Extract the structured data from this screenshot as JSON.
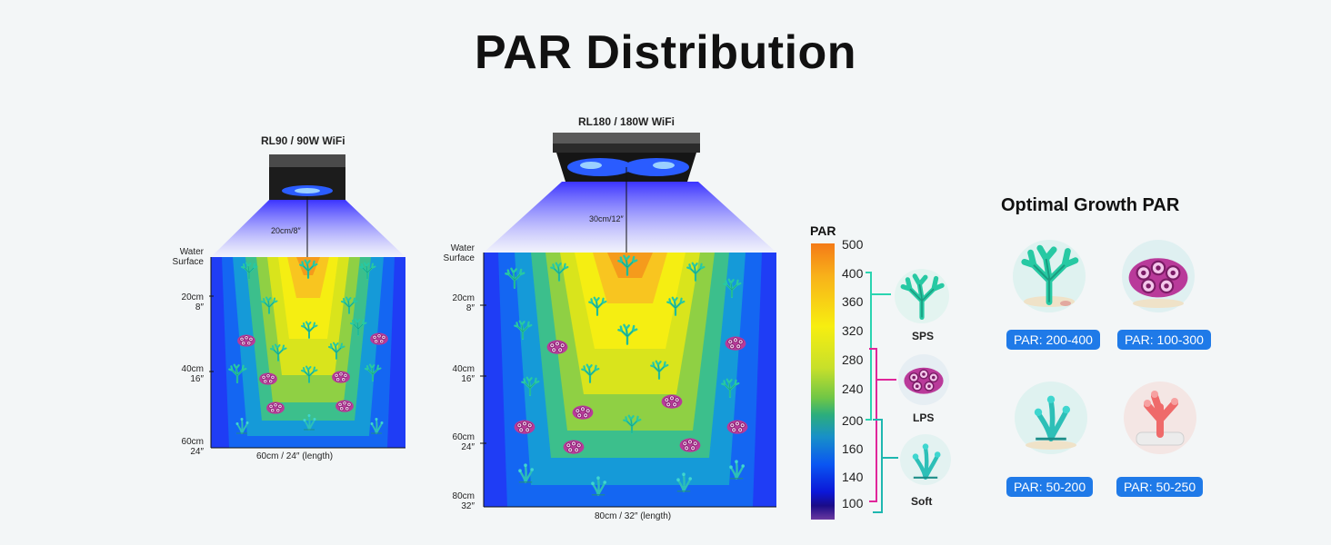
{
  "title": "PAR Distribution",
  "fixtures": [
    {
      "name": "RL90 / 90W WiFi",
      "height_label": "20cm/8″",
      "surface_label": [
        "Water",
        "Surface"
      ],
      "depth_labels": [
        [
          "20cm",
          "8″"
        ],
        [
          "40cm",
          "16″"
        ],
        [
          "60cm",
          "24″"
        ]
      ],
      "length_label": "60cm / 24″  (length)"
    },
    {
      "name": "RL180 / 180W WiFi",
      "height_label": "30cm/12″",
      "surface_label": [
        "Water",
        "Surface"
      ],
      "depth_labels": [
        [
          "20cm",
          "8″"
        ],
        [
          "40cm",
          "16″"
        ],
        [
          "60cm",
          "24″"
        ],
        [
          "80cm",
          "32″"
        ]
      ],
      "length_label": "80cm / 32″  (length)"
    }
  ],
  "scale": {
    "title": "PAR",
    "labels": [
      "500",
      "400",
      "360",
      "320",
      "280",
      "240",
      "200",
      "160",
      "140",
      "100"
    ]
  },
  "coral_categories": [
    {
      "label": "SPS",
      "range": "200-400"
    },
    {
      "label": "LPS",
      "range": "100-300"
    },
    {
      "label": "Soft",
      "range": "100-200"
    }
  ],
  "optimal": {
    "title": "Optimal Growth PAR",
    "items": [
      {
        "badge": "PAR: 200-400",
        "icon": "branching-coral-icon"
      },
      {
        "badge": "PAR: 100-300",
        "icon": "brain-coral-icon"
      },
      {
        "badge": "PAR: 50-200",
        "icon": "soft-coral-icon"
      },
      {
        "badge": "PAR: 50-250",
        "icon": "tube-coral-icon"
      }
    ]
  },
  "colors": {
    "accent": "#1f7ae8",
    "sps_bracket": "#2ad4b0",
    "lps_bracket": "#e0269a",
    "soft_bracket": "#1eb7b0"
  }
}
